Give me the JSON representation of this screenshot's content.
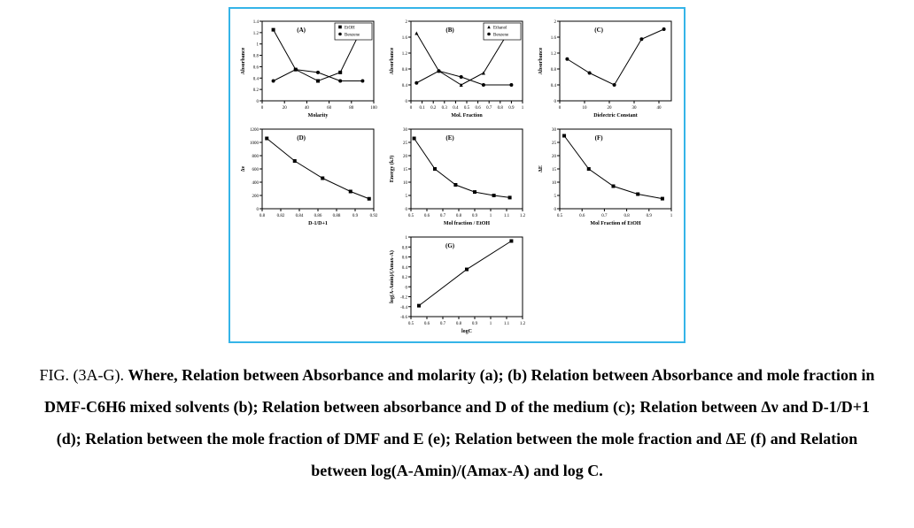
{
  "figure": {
    "border_color": "#35b4e8",
    "panel_theme": {
      "bg": "#ffffff",
      "axis_color": "#000000",
      "axis_width": 1,
      "marker_size": 2.0,
      "line_width": 1,
      "label_fontsize": 5,
      "title_fontsize": 7,
      "text_color": "#000000"
    },
    "panels": {
      "A": {
        "type": "line",
        "label": "(A)",
        "xlabel": "Molarity",
        "ylabel": "Absorbance",
        "xlim": [
          0,
          100
        ],
        "ylim": [
          0,
          1.4
        ],
        "xticks": [
          0,
          20,
          40,
          60,
          80,
          100
        ],
        "yticks": [
          0.0,
          0.2,
          0.4,
          0.6,
          0.8,
          1.0,
          1.2,
          1.4
        ],
        "legend": [
          "EtOH",
          "Benzene"
        ],
        "legend_markers": [
          "square",
          "circle"
        ],
        "series": [
          {
            "name": "EtOH",
            "marker": "square",
            "color": "#000000",
            "x": [
              10,
              30,
              50,
              70,
              90
            ],
            "y": [
              1.25,
              0.55,
              0.35,
              0.5,
              1.3
            ]
          },
          {
            "name": "Benzene",
            "marker": "circle",
            "color": "#000000",
            "x": [
              10,
              30,
              50,
              70,
              90
            ],
            "y": [
              0.35,
              0.55,
              0.5,
              0.35,
              0.35
            ]
          }
        ]
      },
      "B": {
        "type": "line",
        "label": "(B)",
        "xlabel": "Mol. Fraction",
        "ylabel": "Absorbance",
        "xlim": [
          0,
          1.0
        ],
        "ylim": [
          0,
          2.0
        ],
        "xticks": [
          0.0,
          0.1,
          0.2,
          0.3,
          0.4,
          0.5,
          0.6,
          0.7,
          0.8,
          0.9,
          1.0
        ],
        "yticks": [
          0.0,
          0.4,
          0.8,
          1.2,
          1.6,
          2.0
        ],
        "legend": [
          "Ethanol",
          "Benzene"
        ],
        "legend_markers": [
          "triangle",
          "circle"
        ],
        "series": [
          {
            "name": "Ethanol",
            "marker": "triangle",
            "color": "#000000",
            "x": [
              0.05,
              0.25,
              0.45,
              0.65,
              0.9
            ],
            "y": [
              1.7,
              0.75,
              0.4,
              0.7,
              1.85
            ]
          },
          {
            "name": "Benzene",
            "marker": "circle",
            "color": "#000000",
            "x": [
              0.05,
              0.25,
              0.45,
              0.65,
              0.9
            ],
            "y": [
              0.45,
              0.75,
              0.6,
              0.4,
              0.4
            ]
          }
        ]
      },
      "C": {
        "type": "line",
        "label": "(C)",
        "xlabel": "Dielectric Constant",
        "ylabel": "Absorbance",
        "xlim": [
          0,
          45
        ],
        "ylim": [
          0,
          2.0
        ],
        "xticks": [
          0,
          10,
          20,
          30,
          40
        ],
        "yticks": [
          0.0,
          0.4,
          0.8,
          1.2,
          1.6,
          2.0
        ],
        "series": [
          {
            "name": "s1",
            "marker": "circle",
            "color": "#000000",
            "x": [
              3,
              12,
              22,
              33,
              42
            ],
            "y": [
              1.05,
              0.7,
              0.4,
              1.55,
              1.8
            ]
          }
        ]
      },
      "D": {
        "type": "line",
        "label": "(D)",
        "xlabel": "D-1/D+1",
        "ylabel": "Δν",
        "xlim": [
          0.8,
          0.92
        ],
        "ylim": [
          0,
          1200
        ],
        "xticks": [
          0.8,
          0.82,
          0.84,
          0.86,
          0.88,
          0.9,
          0.92
        ],
        "yticks": [
          0,
          200,
          400,
          600,
          800,
          1000,
          1200
        ],
        "series": [
          {
            "name": "s1",
            "marker": "square",
            "color": "#000000",
            "x": [
              0.805,
              0.835,
              0.865,
              0.895,
              0.915
            ],
            "y": [
              1060,
              720,
              460,
              260,
              150
            ]
          }
        ]
      },
      "E": {
        "type": "line",
        "label": "(E)",
        "xlabel": "Mol fraction / EtOH",
        "ylabel": "Energy (kJ)",
        "xlim": [
          0.5,
          1.2
        ],
        "ylim": [
          0,
          30
        ],
        "xticks": [
          0.5,
          0.6,
          0.7,
          0.8,
          0.9,
          1.0,
          1.1,
          1.2
        ],
        "yticks": [
          0,
          5,
          10,
          15,
          20,
          25,
          30
        ],
        "series": [
          {
            "name": "s1",
            "marker": "square",
            "color": "#000000",
            "x": [
              0.52,
              0.65,
              0.78,
              0.9,
              1.02,
              1.12
            ],
            "y": [
              26.5,
              15.0,
              9.0,
              6.3,
              5.0,
              4.2
            ]
          }
        ]
      },
      "F": {
        "type": "line",
        "label": "(F)",
        "xlabel": "Mol Fraction of EtOH",
        "ylabel": "ΔE",
        "xlim": [
          0.5,
          1.0
        ],
        "ylim": [
          0,
          30
        ],
        "xticks": [
          0.5,
          0.6,
          0.7,
          0.8,
          0.9,
          1.0
        ],
        "yticks": [
          0,
          5,
          10,
          15,
          20,
          25,
          30
        ],
        "series": [
          {
            "name": "s1",
            "marker": "square",
            "color": "#000000",
            "x": [
              0.52,
              0.63,
              0.74,
              0.85,
              0.96
            ],
            "y": [
              27.5,
              15.0,
              8.5,
              5.5,
              3.8
            ]
          }
        ]
      },
      "G": {
        "type": "line",
        "label": "(G)",
        "xlabel": "logC",
        "ylabel": "log(A-Amin)/(Amax-A)",
        "xlim": [
          0.5,
          1.2
        ],
        "ylim": [
          -0.6,
          1.0
        ],
        "xticks": [
          0.5,
          0.6,
          0.7,
          0.8,
          0.9,
          1.0,
          1.1,
          1.2
        ],
        "yticks": [
          -0.6,
          -0.4,
          -0.2,
          0.0,
          0.2,
          0.4,
          0.6,
          0.8,
          1.0
        ],
        "series": [
          {
            "name": "s1",
            "marker": "square",
            "color": "#000000",
            "x": [
              0.55,
              0.85,
              1.13
            ],
            "y": [
              -0.38,
              0.35,
              0.92
            ]
          }
        ]
      }
    }
  },
  "caption": {
    "lead": "FIG. (3A-G). ",
    "body": "Where, Relation between Absorbance and molarity (a); (b) Relation between Absorbance and mole fraction in DMF-C6H6 mixed solvents (b); Relation between absorbance and D of the medium (c); Relation between Δν and D-1/D+1 (d); Relation between the mole fraction of DMF and E (e); Relation between the mole fraction and ΔE (f) and Relation between log(A-Amin)/(Amax-A) and log C."
  }
}
